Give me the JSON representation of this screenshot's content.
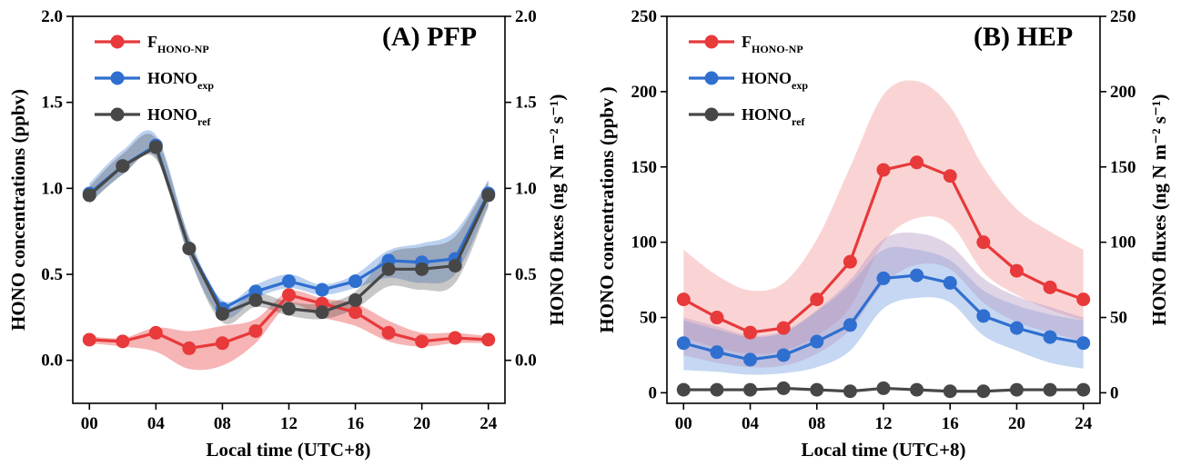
{
  "chart_data": [
    {
      "type": "line",
      "title": "(A) PFP",
      "xlabel": "Local time (UTC+8)",
      "ylabel": "HONO concentrations (ppbv)",
      "y2label": "HONO fluxes (ng N m⁻² s⁻¹)",
      "xlim": [
        -1,
        25
      ],
      "ylim": [
        -0.25,
        2.0
      ],
      "xticks": [
        "00",
        "04",
        "08",
        "12",
        "16",
        "20",
        "24"
      ],
      "xtick_values": [
        0,
        4,
        8,
        12,
        16,
        20,
        24
      ],
      "yticks": [
        "0.0",
        "0.5",
        "1.0",
        "1.5",
        "2.0"
      ],
      "ytick_values": [
        0,
        0.5,
        1.0,
        1.5,
        2.0
      ],
      "legend_position": "top-left",
      "x": [
        0,
        2,
        4,
        6,
        8,
        10,
        12,
        14,
        16,
        18,
        20,
        22,
        24
      ],
      "series": [
        {
          "name_main": "F",
          "name_sub": "HONO-NP",
          "color": "#e8393b",
          "values": [
            0.12,
            0.11,
            0.16,
            0.07,
            0.1,
            0.17,
            0.38,
            0.33,
            0.28,
            0.16,
            0.11,
            0.13,
            0.12
          ],
          "band_lower": [
            0.1,
            0.08,
            0.05,
            -0.05,
            -0.03,
            0.1,
            0.32,
            0.25,
            0.2,
            0.11,
            0.08,
            0.1,
            0.1
          ],
          "band_upper": [
            0.14,
            0.13,
            0.19,
            0.17,
            0.2,
            0.24,
            0.4,
            0.36,
            0.33,
            0.23,
            0.16,
            0.16,
            0.14
          ]
        },
        {
          "name_main": "HONO",
          "name_sub": "exp",
          "color": "#2f6fd0",
          "values": [
            0.97,
            1.13,
            1.25,
            0.65,
            0.3,
            0.4,
            0.46,
            0.41,
            0.46,
            0.58,
            0.57,
            0.59,
            0.97
          ],
          "band_lower": [
            0.92,
            1.08,
            1.18,
            0.6,
            0.25,
            0.36,
            0.42,
            0.38,
            0.42,
            0.48,
            0.45,
            0.5,
            0.9
          ],
          "band_upper": [
            1.03,
            1.22,
            1.31,
            0.72,
            0.35,
            0.44,
            0.5,
            0.44,
            0.5,
            0.64,
            0.68,
            0.75,
            1.05
          ]
        },
        {
          "name_main": "HONO",
          "name_sub": "ref",
          "color": "#474747",
          "values": [
            0.96,
            1.13,
            1.24,
            0.65,
            0.27,
            0.35,
            0.3,
            0.28,
            0.35,
            0.53,
            0.53,
            0.55,
            0.96
          ],
          "band_lower": [
            0.91,
            1.08,
            1.17,
            0.6,
            0.22,
            0.31,
            0.26,
            0.24,
            0.3,
            0.43,
            0.41,
            0.45,
            0.89
          ],
          "band_upper": [
            1.01,
            1.2,
            1.29,
            0.71,
            0.32,
            0.39,
            0.34,
            0.33,
            0.4,
            0.62,
            0.66,
            0.72,
            1.04
          ]
        }
      ]
    },
    {
      "type": "line",
      "title": "(B) HEP",
      "xlabel": "Local time (UTC+8)",
      "ylabel": "HONO concentrations  (ppbv )",
      "y2label": "HONO fluxes (ng N m⁻² s⁻¹)",
      "xlim": [
        -1,
        25
      ],
      "ylim": [
        -7,
        250
      ],
      "xticks": [
        "00",
        "04",
        "08",
        "12",
        "16",
        "20",
        "24"
      ],
      "xtick_values": [
        0,
        4,
        8,
        12,
        16,
        20,
        24
      ],
      "yticks": [
        "0",
        "50",
        "100",
        "150",
        "200",
        "250"
      ],
      "ytick_values": [
        0,
        50,
        100,
        150,
        200,
        250
      ],
      "legend_position": "top-left",
      "x": [
        0,
        2,
        4,
        6,
        8,
        10,
        12,
        14,
        16,
        18,
        20,
        22,
        24
      ],
      "series": [
        {
          "name_main": "F",
          "name_sub": "HONO-NP",
          "color": "#e8393b",
          "values": [
            62,
            50,
            40,
            43,
            62,
            87,
            148,
            153,
            144,
            100,
            81,
            70,
            62
          ],
          "band_lower": [
            37,
            30,
            26,
            28,
            38,
            57,
            100,
            116,
            112,
            80,
            65,
            55,
            48
          ],
          "band_upper": [
            95,
            78,
            68,
            73,
            102,
            150,
            198,
            207,
            190,
            150,
            122,
            107,
            95
          ]
        },
        {
          "name_main": "HONO",
          "name_sub": "exp",
          "color": "#2f6fd0",
          "values": [
            33,
            27,
            22,
            25,
            34,
            45,
            76,
            78,
            73,
            51,
            43,
            37,
            33
          ],
          "band_lower": [
            15,
            14,
            12,
            13,
            17,
            28,
            56,
            63,
            60,
            38,
            28,
            20,
            16
          ],
          "band_upper": [
            48,
            42,
            37,
            40,
            54,
            72,
            95,
            95,
            88,
            68,
            58,
            52,
            48
          ]
        },
        {
          "name_main": "HONO",
          "name_sub": "ref",
          "color": "#474747",
          "values": [
            2,
            2,
            2,
            3,
            2,
            1,
            3,
            2,
            1,
            1,
            2,
            2,
            2
          ]
        }
      ],
      "overlap_band": {
        "color": "#b8a0c8",
        "band_lower": [
          25,
          20,
          17,
          18,
          26,
          42,
          72,
          85,
          82,
          60,
          47,
          40,
          34
        ],
        "band_upper": [
          50,
          44,
          38,
          41,
          55,
          75,
          102,
          106,
          98,
          76,
          64,
          57,
          50
        ]
      }
    }
  ]
}
